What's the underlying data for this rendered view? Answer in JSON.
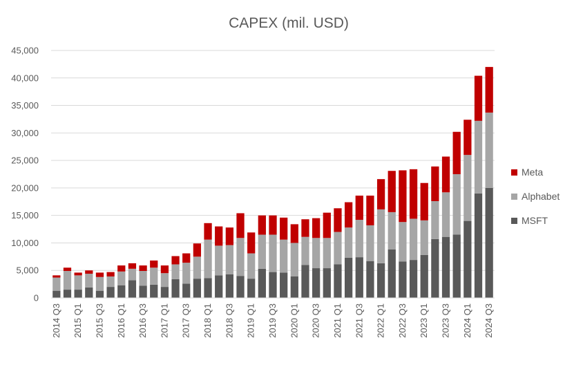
{
  "chart_data": {
    "type": "bar",
    "stacked": true,
    "title": "CAPEX (mil. USD)",
    "xlabel": "",
    "ylabel": "",
    "ylim": [
      0,
      45000
    ],
    "yticks": [
      "0",
      "5,000",
      "10,000",
      "15,000",
      "20,000",
      "25,000",
      "30,000",
      "35,000",
      "40,000",
      "45,000"
    ],
    "grid": true,
    "legend_position": "right",
    "categories": [
      "2014 Q3",
      "2014 Q4",
      "2015 Q1",
      "2015 Q2",
      "2015 Q3",
      "2015 Q4",
      "2016 Q1",
      "2016 Q2",
      "2016 Q3",
      "2016 Q4",
      "2017 Q1",
      "2017 Q2",
      "2017 Q3",
      "2017 Q4",
      "2018 Q1",
      "2018 Q2",
      "2018 Q3",
      "2018 Q4",
      "2019 Q1",
      "2019 Q2",
      "2019 Q3",
      "2019 Q4",
      "2020 Q1",
      "2020 Q2",
      "2020 Q3",
      "2020 Q4",
      "2021 Q1",
      "2021 Q2",
      "2021 Q3",
      "2021 Q4",
      "2022 Q1",
      "2022 Q2",
      "2022 Q3",
      "2022 Q4",
      "2023 Q1",
      "2023 Q2",
      "2023 Q3",
      "2023 Q4",
      "2024 Q1",
      "2024 Q2",
      "2024 Q3"
    ],
    "visible_xtick_labels": [
      "2014 Q3",
      "2015 Q1",
      "2015 Q3",
      "2016 Q1",
      "2016 Q3",
      "2017 Q1",
      "2017 Q3",
      "2018 Q1",
      "2018 Q3",
      "2019 Q1",
      "2019 Q3",
      "2020 Q1",
      "2020 Q3",
      "2021 Q1",
      "2021 Q3",
      "2022 Q1",
      "2022 Q3",
      "2023 Q1",
      "2023 Q3",
      "2024 Q1",
      "2024 Q3"
    ],
    "series": [
      {
        "name": "MSFT",
        "color": "#595959",
        "values": [
          1300,
          1500,
          1500,
          1900,
          1300,
          2000,
          2300,
          3200,
          2200,
          2400,
          2000,
          3400,
          2600,
          3500,
          3600,
          4100,
          4300,
          4000,
          3500,
          5300,
          4700,
          4600,
          3900,
          6000,
          5400,
          5400,
          6100,
          7300,
          7400,
          6700,
          6300,
          8800,
          6600,
          6900,
          7800,
          10700,
          11100,
          11500,
          14000,
          19000,
          20000
        ]
      },
      {
        "name": "Alphabet",
        "color": "#a6a6a6",
        "values": [
          2400,
          3400,
          2600,
          2500,
          2500,
          1900,
          2500,
          2100,
          2700,
          3100,
          2500,
          2700,
          3800,
          4000,
          7000,
          5400,
          5300,
          6900,
          4600,
          6200,
          6800,
          6000,
          6100,
          5100,
          5500,
          5500,
          5900,
          5500,
          6800,
          6500,
          9800,
          6800,
          7200,
          7500,
          6300,
          6900,
          8100,
          11000,
          12000,
          13200,
          13700
        ]
      },
      {
        "name": "Meta",
        "color": "#c00000",
        "values": [
          400,
          600,
          500,
          600,
          800,
          800,
          1100,
          1000,
          1000,
          1300,
          1400,
          1500,
          1700,
          2400,
          3000,
          3500,
          3200,
          4500,
          3800,
          3500,
          3500,
          4000,
          3400,
          3200,
          3600,
          4600,
          4300,
          4600,
          4400,
          5400,
          5500,
          7500,
          9400,
          9000,
          6800,
          6300,
          6500,
          7700,
          6400,
          8200,
          8300
        ]
      }
    ]
  }
}
